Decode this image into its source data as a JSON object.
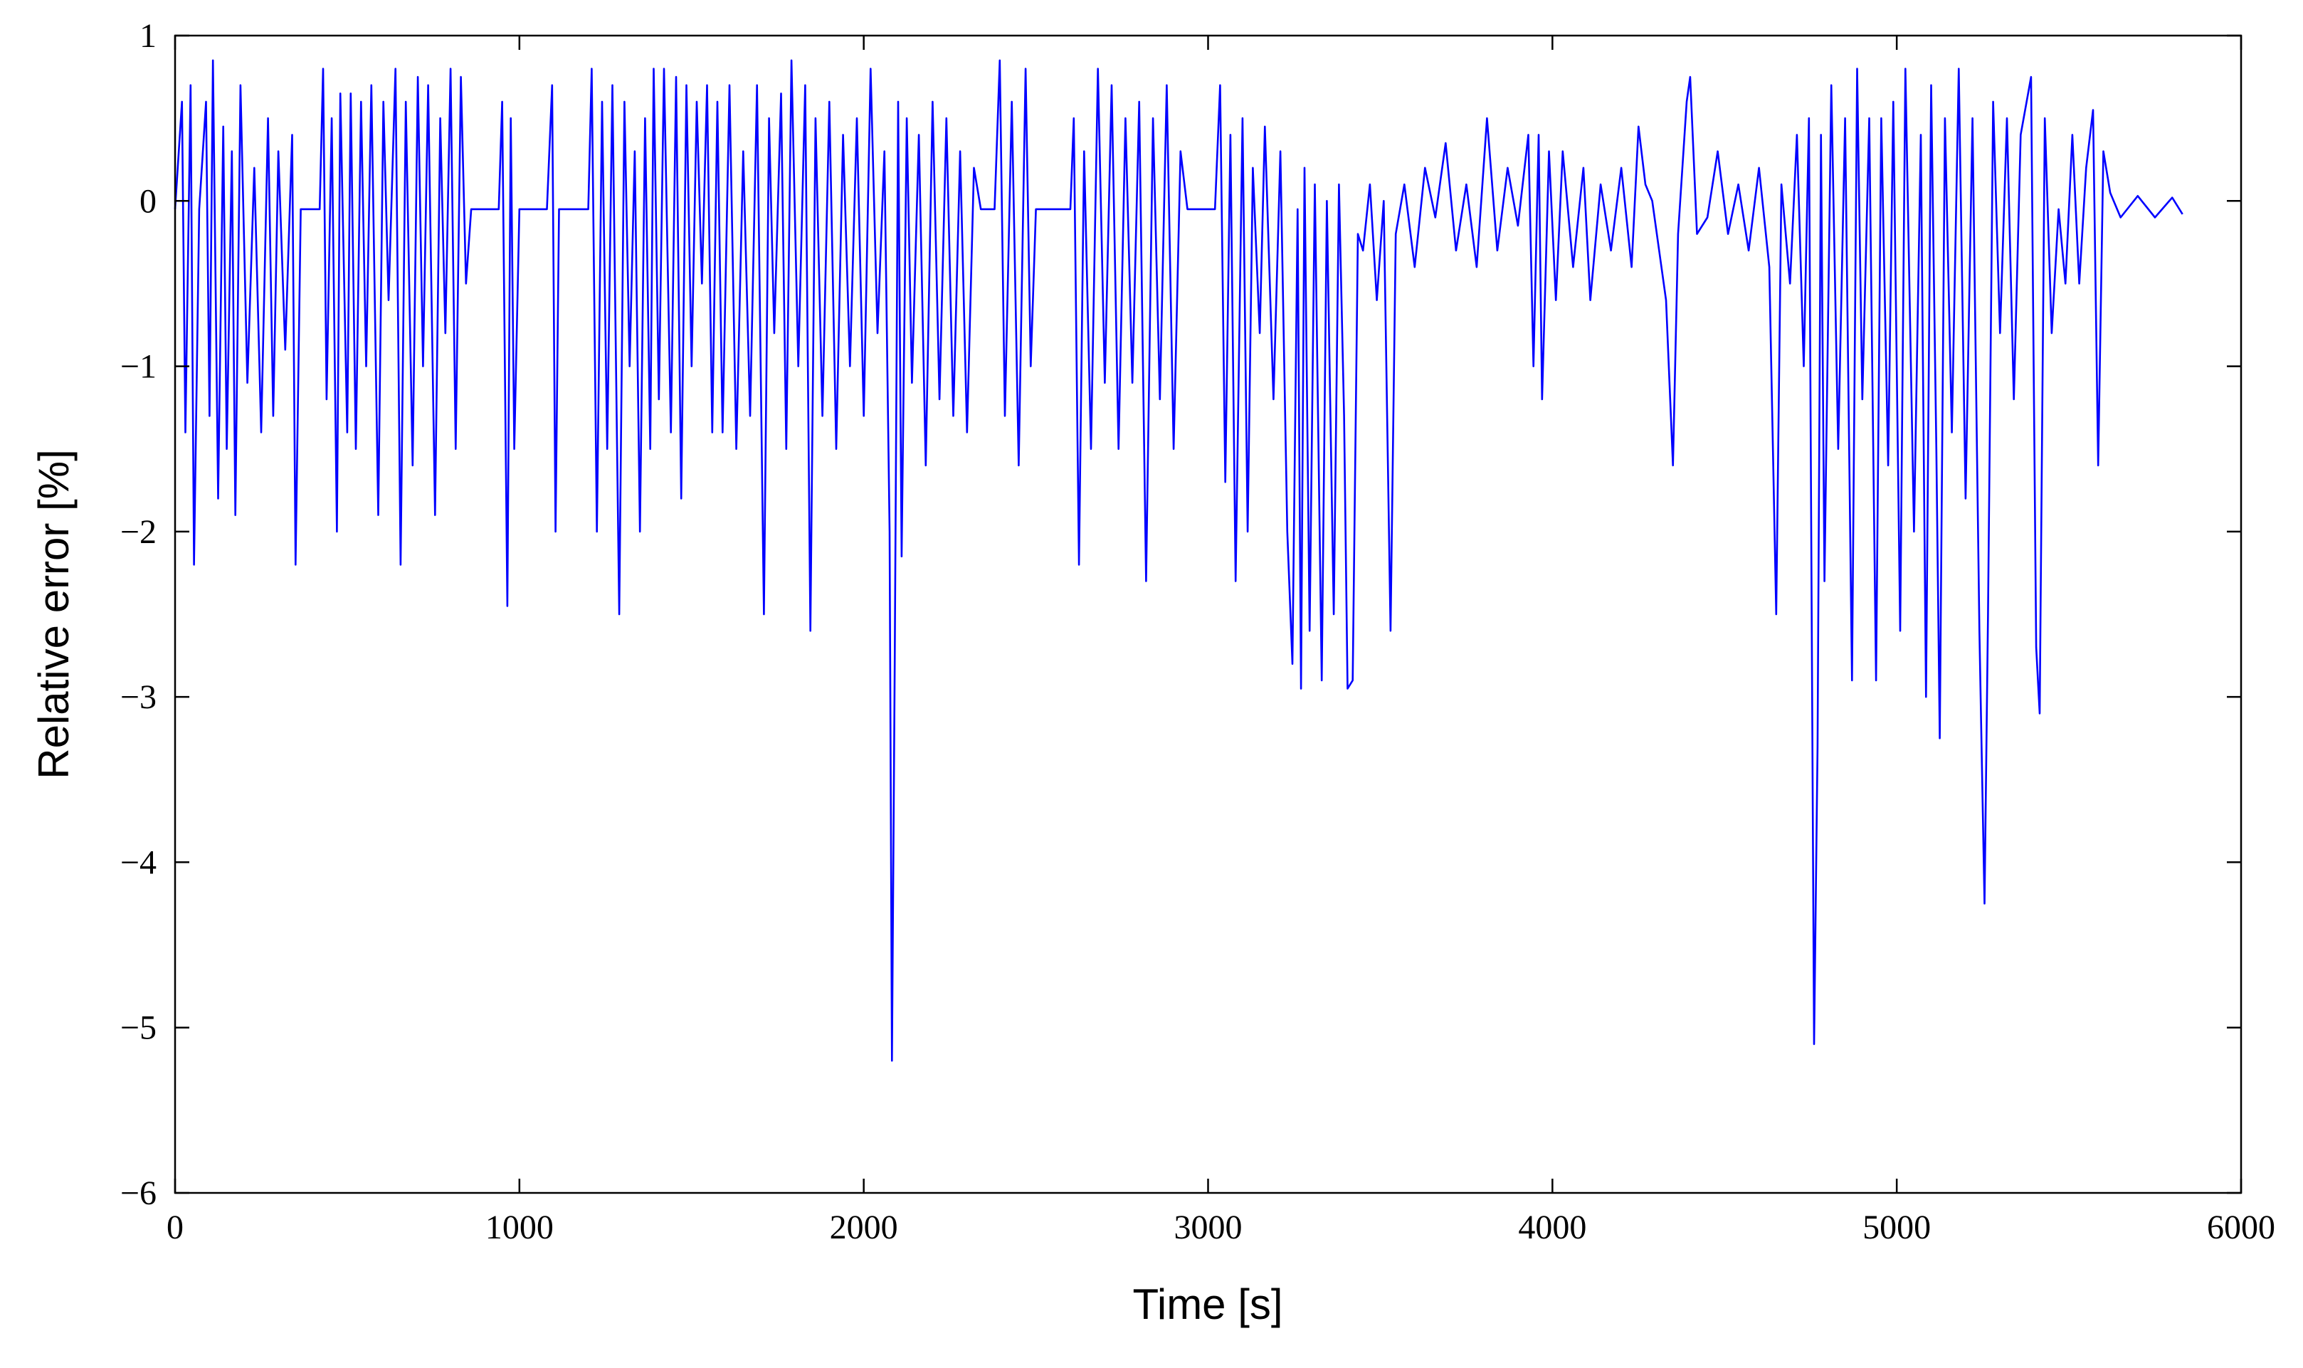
{
  "chart_data": {
    "type": "line",
    "xlabel": "Time [s]",
    "ylabel": "Relative error [%]",
    "color": "#0000ff",
    "xlim": [
      0,
      6000
    ],
    "xticks": [
      0,
      1000,
      2000,
      3000,
      4000,
      5000,
      6000
    ],
    "ylim": [
      -6,
      1
    ],
    "yticks": [
      {
        "value": -6,
        "label": "−6"
      },
      {
        "value": -5,
        "label": "−5"
      },
      {
        "value": -4,
        "label": "−4"
      },
      {
        "value": -3,
        "label": "−3"
      },
      {
        "value": -2,
        "label": "−2"
      },
      {
        "value": -1,
        "label": "−1"
      },
      0,
      1
    ],
    "grid": false,
    "x": [
      0,
      20,
      30,
      45,
      55,
      70,
      90,
      100,
      110,
      125,
      140,
      150,
      165,
      175,
      190,
      210,
      230,
      250,
      270,
      285,
      300,
      320,
      340,
      350,
      365,
      420,
      430,
      440,
      455,
      470,
      480,
      500,
      510,
      525,
      540,
      555,
      570,
      590,
      605,
      620,
      640,
      655,
      670,
      690,
      705,
      720,
      735,
      755,
      770,
      785,
      800,
      815,
      830,
      845,
      860,
      940,
      950,
      965,
      975,
      985,
      1000,
      1080,
      1095,
      1105,
      1115,
      1200,
      1210,
      1225,
      1240,
      1255,
      1270,
      1290,
      1305,
      1320,
      1335,
      1350,
      1365,
      1380,
      1390,
      1405,
      1420,
      1440,
      1455,
      1470,
      1485,
      1500,
      1515,
      1530,
      1545,
      1560,
      1575,
      1590,
      1610,
      1630,
      1650,
      1670,
      1690,
      1710,
      1725,
      1740,
      1760,
      1775,
      1790,
      1810,
      1830,
      1845,
      1860,
      1880,
      1900,
      1920,
      1940,
      1960,
      1980,
      2000,
      2020,
      2040,
      2060,
      2075,
      2082,
      2090,
      2100,
      2110,
      2125,
      2140,
      2160,
      2180,
      2200,
      2220,
      2240,
      2260,
      2280,
      2300,
      2320,
      2340,
      2380,
      2395,
      2410,
      2430,
      2450,
      2470,
      2485,
      2500,
      2600,
      2610,
      2625,
      2640,
      2660,
      2680,
      2700,
      2720,
      2740,
      2760,
      2780,
      2800,
      2820,
      2840,
      2860,
      2880,
      2900,
      2920,
      2940,
      3020,
      3035,
      3050,
      3065,
      3080,
      3100,
      3115,
      3130,
      3150,
      3165,
      3190,
      3210,
      3230,
      3245,
      3260,
      3270,
      3280,
      3295,
      3310,
      3330,
      3345,
      3365,
      3380,
      3395,
      3405,
      3420,
      3435,
      3450,
      3470,
      3490,
      3510,
      3530,
      3545,
      3570,
      3600,
      3630,
      3660,
      3690,
      3720,
      3750,
      3780,
      3810,
      3840,
      3870,
      3900,
      3930,
      3945,
      3960,
      3970,
      3990,
      4010,
      4030,
      4060,
      4090,
      4110,
      4140,
      4170,
      4200,
      4230,
      4250,
      4270,
      4290,
      4310,
      4330,
      4350,
      4365,
      4390,
      4400,
      4420,
      4450,
      4480,
      4510,
      4540,
      4570,
      4600,
      4630,
      4650,
      4665,
      4690,
      4710,
      4730,
      4745,
      4760,
      4770,
      4780,
      4790,
      4810,
      4830,
      4850,
      4870,
      4885,
      4900,
      4920,
      4940,
      4955,
      4975,
      4990,
      5010,
      5025,
      5050,
      5070,
      5085,
      5100,
      5115,
      5125,
      5140,
      5160,
      5180,
      5200,
      5220,
      5240,
      5255,
      5265,
      5280,
      5300,
      5320,
      5340,
      5360,
      5390,
      5405,
      5415,
      5430,
      5450,
      5470,
      5490,
      5510,
      5530,
      5550,
      5570,
      5585,
      5600,
      5620,
      5650,
      5700,
      5750,
      5800,
      5830
    ],
    "values": [
      -0.05,
      0.6,
      -1.4,
      0.7,
      -2.2,
      -0.05,
      0.6,
      -1.3,
      0.85,
      -1.8,
      0.45,
      -1.5,
      0.3,
      -1.9,
      0.7,
      -1.1,
      0.2,
      -1.4,
      0.5,
      -1.3,
      0.3,
      -0.9,
      0.4,
      -2.2,
      -0.05,
      -0.05,
      0.8,
      -1.2,
      0.5,
      -2.0,
      0.65,
      -1.4,
      0.65,
      -1.5,
      0.6,
      -1.0,
      0.7,
      -1.9,
      0.6,
      -0.6,
      0.8,
      -2.2,
      0.6,
      -1.6,
      0.75,
      -1.0,
      0.7,
      -1.9,
      0.5,
      -0.8,
      0.8,
      -1.5,
      0.75,
      -0.5,
      -0.05,
      -0.05,
      0.6,
      -2.45,
      0.5,
      -1.5,
      -0.05,
      -0.05,
      0.7,
      -2.0,
      -0.05,
      -0.05,
      0.8,
      -2.0,
      0.6,
      -1.5,
      0.7,
      -2.5,
      0.6,
      -1.0,
      0.3,
      -2.0,
      0.5,
      -1.5,
      0.8,
      -1.2,
      0.8,
      -1.4,
      0.75,
      -1.8,
      0.7,
      -1.0,
      0.6,
      -0.5,
      0.7,
      -1.4,
      0.6,
      -1.4,
      0.7,
      -1.5,
      0.3,
      -1.3,
      0.7,
      -2.5,
      0.5,
      -0.8,
      0.65,
      -1.5,
      0.85,
      -1.0,
      0.7,
      -2.6,
      0.5,
      -1.3,
      0.6,
      -1.5,
      0.4,
      -1.0,
      0.5,
      -1.3,
      0.8,
      -0.8,
      0.3,
      -2.0,
      -5.2,
      -2.8,
      0.6,
      -2.15,
      0.5,
      -1.1,
      0.4,
      -1.6,
      0.6,
      -1.2,
      0.5,
      -1.3,
      0.3,
      -1.4,
      0.2,
      -0.05,
      -0.05,
      0.85,
      -1.3,
      0.6,
      -1.6,
      0.8,
      -1.0,
      -0.05,
      -0.05,
      0.5,
      -2.2,
      0.3,
      -1.5,
      0.8,
      -1.1,
      0.7,
      -1.5,
      0.5,
      -1.1,
      0.6,
      -2.3,
      0.5,
      -1.2,
      0.7,
      -1.5,
      0.3,
      -0.05,
      -0.05,
      0.7,
      -1.7,
      0.4,
      -2.3,
      0.5,
      -2.0,
      0.2,
      -0.8,
      0.45,
      -1.2,
      0.3,
      -2.0,
      -2.8,
      -0.05,
      -2.95,
      0.2,
      -2.6,
      0.1,
      -2.9,
      0.0,
      -2.5,
      0.1,
      -1.3,
      -2.95,
      -2.9,
      -0.2,
      -0.3,
      0.1,
      -0.6,
      0.0,
      -2.6,
      -0.2,
      0.1,
      -0.4,
      0.2,
      -0.1,
      0.35,
      -0.3,
      0.1,
      -0.4,
      0.5,
      -0.3,
      0.2,
      -0.15,
      0.4,
      -1.0,
      0.4,
      -1.2,
      0.3,
      -0.6,
      0.3,
      -0.4,
      0.2,
      -0.6,
      0.1,
      -0.3,
      0.2,
      -0.4,
      0.45,
      0.1,
      0.0,
      -0.3,
      -0.6,
      -1.6,
      -0.2,
      0.6,
      0.75,
      -0.2,
      -0.1,
      0.3,
      -0.2,
      0.1,
      -0.3,
      0.2,
      -0.4,
      -2.5,
      0.1,
      -0.5,
      0.4,
      -1.0,
      0.5,
      -5.1,
      -3.3,
      0.4,
      -2.3,
      0.7,
      -1.5,
      0.5,
      -2.9,
      0.8,
      -1.2,
      0.5,
      -2.9,
      0.5,
      -1.6,
      0.6,
      -2.6,
      0.8,
      -2.0,
      0.4,
      -3.0,
      0.7,
      -1.5,
      -3.25,
      0.5,
      -1.4,
      0.8,
      -1.8,
      0.5,
      -2.6,
      -4.25,
      -2.5,
      0.6,
      -0.8,
      0.5,
      -1.2,
      0.4,
      0.75,
      -2.7,
      -3.1,
      0.5,
      -0.8,
      -0.05,
      -0.5,
      0.4,
      -0.5,
      0.2,
      0.55,
      -1.6,
      0.3,
      0.05,
      -0.1,
      0.03,
      -0.1,
      0.02,
      -0.08
    ]
  }
}
